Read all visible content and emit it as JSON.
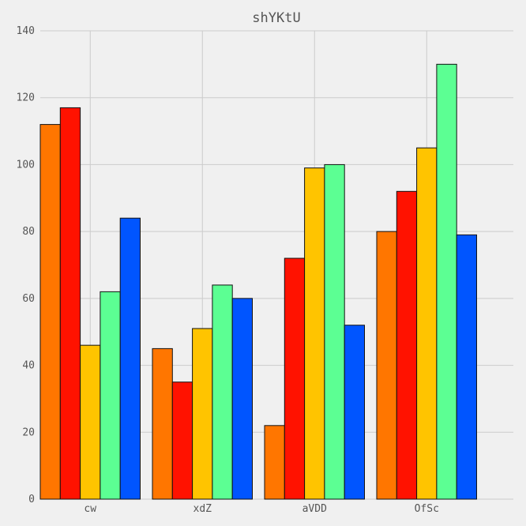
{
  "chart_data": {
    "type": "bar",
    "title": "shYKtU",
    "categories": [
      "cw",
      "xdZ",
      "aVDD",
      "OfSc"
    ],
    "series": [
      {
        "color": "#ff7600",
        "values": [
          112,
          45,
          22,
          80
        ]
      },
      {
        "color": "#ff1200",
        "values": [
          117,
          35,
          72,
          92
        ]
      },
      {
        "color": "#ffc400",
        "values": [
          46,
          51,
          99,
          105
        ]
      },
      {
        "color": "#5cff93",
        "values": [
          62,
          64,
          100,
          130
        ]
      },
      {
        "color": "#0055ff",
        "values": [
          84,
          60,
          52,
          79
        ]
      }
    ],
    "ylim": [
      0,
      140
    ],
    "yticks": [
      0,
      20,
      40,
      60,
      80,
      100,
      120,
      140
    ],
    "grid": true,
    "background": "#f0f0f0",
    "grid_color": "#cbcbcb",
    "text_color": "#555555"
  }
}
